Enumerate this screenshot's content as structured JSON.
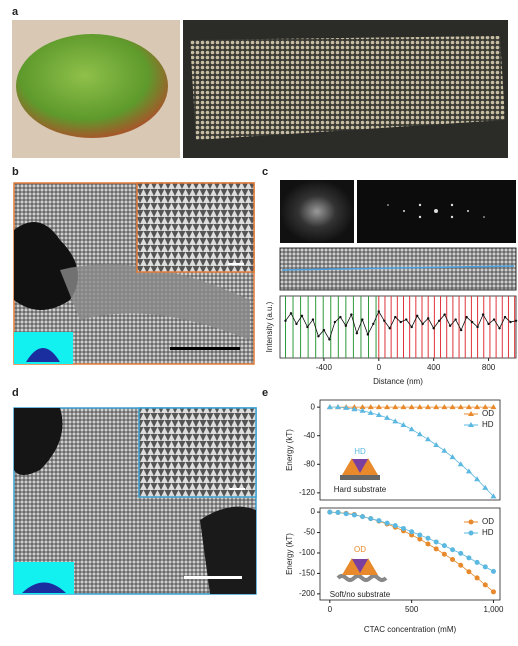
{
  "panel_labels": [
    "a",
    "b",
    "c",
    "d",
    "e"
  ],
  "chart_data": [
    {
      "type": "scatter",
      "ylabel": "Intensity (a.u.)",
      "xlabel": "Distance (nm)",
      "xlim": [
        -720,
        1000
      ],
      "ylim": [
        0,
        1
      ],
      "xticks": [
        -400,
        0,
        400,
        800
      ],
      "x": [
        -680,
        -640,
        -600,
        -560,
        -520,
        -480,
        -440,
        -400,
        -360,
        -320,
        -280,
        -240,
        -200,
        -160,
        -120,
        -80,
        -40,
        0,
        40,
        80,
        120,
        160,
        200,
        240,
        280,
        320,
        360,
        400,
        440,
        480,
        520,
        560,
        600,
        640,
        680,
        720,
        760,
        800,
        840,
        880,
        920,
        960,
        1000
      ],
      "values": [
        0.6,
        0.72,
        0.55,
        0.68,
        0.5,
        0.62,
        0.35,
        0.45,
        0.3,
        0.58,
        0.66,
        0.52,
        0.7,
        0.4,
        0.62,
        0.38,
        0.55,
        0.75,
        0.6,
        0.48,
        0.66,
        0.58,
        0.62,
        0.5,
        0.68,
        0.55,
        0.64,
        0.48,
        0.6,
        0.7,
        0.52,
        0.62,
        0.45,
        0.66,
        0.58,
        0.5,
        0.7,
        0.55,
        0.62,
        0.48,
        0.66,
        0.58,
        0.6
      ],
      "color": "#111111",
      "markers": [
        {
          "color": "#2e9a3a",
          "x": [
            -680,
            -625,
            -570,
            -515,
            -460,
            -405,
            -350,
            -295,
            -240,
            -185,
            -130,
            -75,
            -20
          ]
        },
        {
          "color": "#e0343a",
          "x": [
            0,
            45,
            90,
            135,
            180,
            225,
            270,
            315,
            360,
            405,
            450,
            495,
            540,
            585,
            630,
            675,
            720,
            765,
            810,
            855,
            900,
            945,
            990
          ]
        }
      ]
    },
    {
      "type": "line",
      "ylabel": "Energy (kT)",
      "xlim": [
        -60,
        1040
      ],
      "ylim": [
        -130,
        10
      ],
      "yticks": [
        0,
        -40,
        -80,
        -120
      ],
      "legend": "upper right",
      "annotations": [
        "HD",
        "Hard substrate"
      ],
      "x": [
        0,
        50,
        100,
        150,
        200,
        250,
        300,
        350,
        400,
        450,
        500,
        550,
        600,
        650,
        700,
        750,
        800,
        850,
        900,
        950,
        1000
      ],
      "series": [
        {
          "name": "OD",
          "color": "#e8892b",
          "marker": "triangle",
          "values": [
            0,
            0,
            0,
            0,
            0,
            0,
            0,
            0,
            0,
            0,
            0,
            0,
            0,
            0,
            0,
            0,
            0,
            0,
            0,
            0,
            0
          ]
        },
        {
          "name": "HD",
          "color": "#5bb8e0",
          "marker": "triangle",
          "values": [
            0,
            0,
            -1,
            -3,
            -5,
            -8,
            -11,
            -15,
            -20,
            -25,
            -31,
            -38,
            -45,
            -53,
            -61,
            -70,
            -80,
            -90,
            -101,
            -113,
            -125
          ]
        }
      ]
    },
    {
      "type": "line",
      "ylabel": "Energy (kT)",
      "xlabel": "CTAC concentration (mM)",
      "xlim": [
        -60,
        1040
      ],
      "ylim": [
        -215,
        10
      ],
      "yticks": [
        0,
        -50,
        -100,
        -150,
        -200
      ],
      "xticks": [
        0,
        500,
        {
          "value": 1000,
          "label": "1,000"
        }
      ],
      "legend": "upper right",
      "annotations": [
        "OD",
        "Soft/no substrate"
      ],
      "x": [
        0,
        50,
        100,
        150,
        200,
        250,
        300,
        350,
        400,
        450,
        500,
        550,
        600,
        650,
        700,
        750,
        800,
        850,
        900,
        950,
        1000
      ],
      "series": [
        {
          "name": "OD",
          "color": "#e8892b",
          "marker": "circle",
          "values": [
            0,
            -1,
            -3,
            -6,
            -11,
            -16,
            -22,
            -29,
            -37,
            -46,
            -56,
            -66,
            -78,
            -90,
            -103,
            -116,
            -130,
            -146,
            -161,
            -178,
            -195
          ]
        },
        {
          "name": "HD",
          "color": "#5bb8e0",
          "marker": "circle",
          "values": [
            0,
            -1,
            -4,
            -7,
            -11,
            -16,
            -21,
            -27,
            -33,
            -40,
            -48,
            -56,
            -64,
            -73,
            -82,
            -92,
            -101,
            -112,
            -123,
            -134,
            -145
          ]
        }
      ]
    }
  ]
}
